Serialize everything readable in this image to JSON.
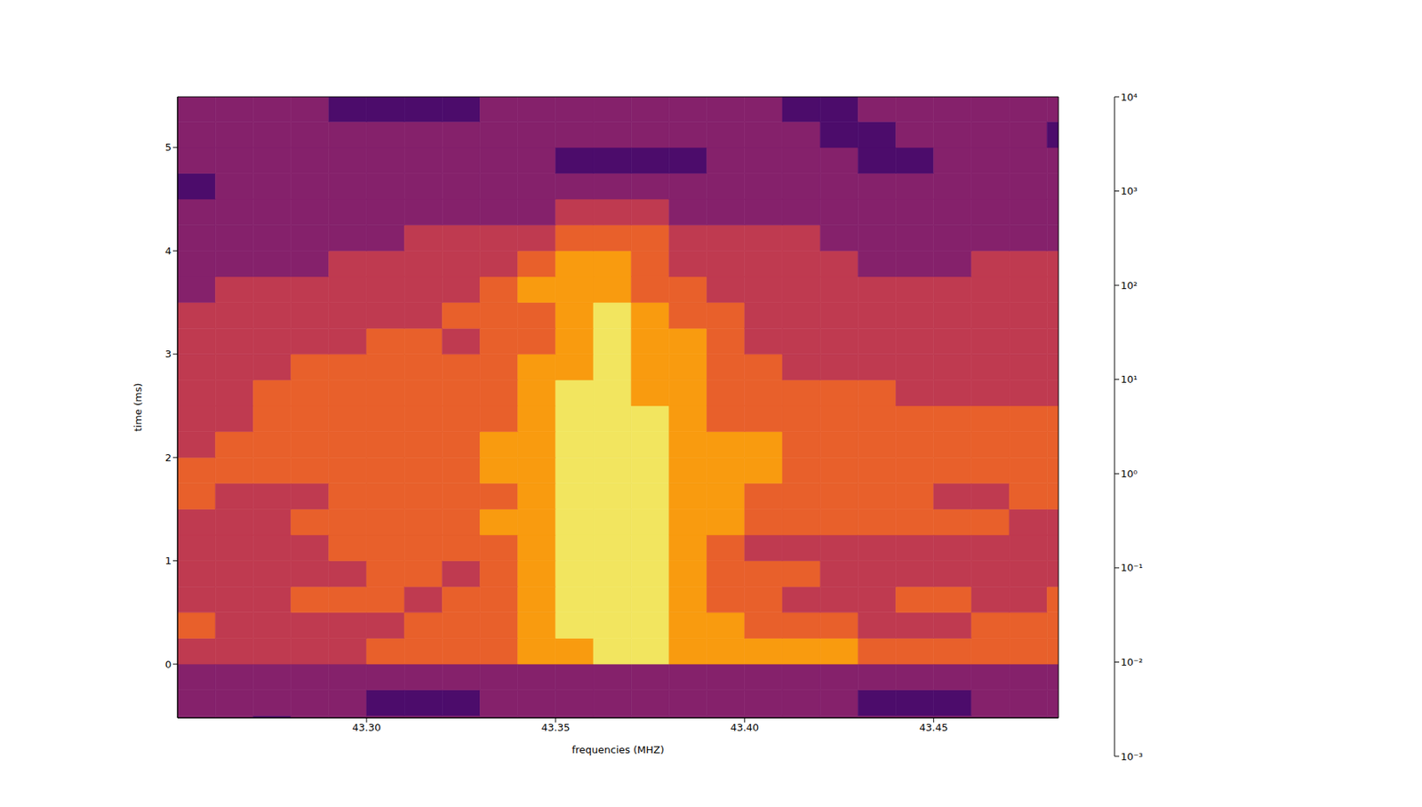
{
  "chart_data": {
    "type": "contourf",
    "x_label": "frequencies (MHZ)",
    "y_label": "time (ms)",
    "xlim": [
      43.25,
      43.483
    ],
    "ylim": [
      -0.52,
      5.49
    ],
    "xticks": [
      {
        "value": 43.3,
        "label": "43.30"
      },
      43.35,
      {
        "value": 43.4,
        "label": "43.40"
      },
      43.45
    ],
    "yticks": [
      0,
      1,
      2,
      3,
      4,
      5
    ],
    "x_edges": [
      43.25,
      43.26,
      43.27,
      43.28,
      43.29,
      43.3,
      43.31,
      43.32,
      43.33,
      43.34,
      43.35,
      43.36,
      43.37,
      43.38,
      43.39,
      43.4,
      43.41,
      43.42,
      43.43,
      43.44,
      43.45,
      43.46,
      43.47,
      43.48,
      43.49
    ],
    "y_edges": [
      -0.75,
      -0.5,
      -0.25,
      0,
      0.25,
      0.5,
      0.75,
      1,
      1.25,
      1.5,
      1.75,
      2,
      2.25,
      2.5,
      2.75,
      3,
      3.25,
      3.5,
      3.75,
      4,
      4.25,
      4.5,
      4.75,
      5,
      5.25,
      5.5
    ],
    "cells": [
      [
        0.5,
        0.5,
        0.05,
        0.5,
        0.5,
        0.5,
        0.5,
        0.5,
        0.5,
        0.5,
        0.5,
        0.5,
        0.5,
        0.5,
        0.5,
        0.5,
        0.5,
        0.5,
        0.5,
        0.5,
        0.5,
        0.5,
        0.5,
        0.5
      ],
      [
        0.5,
        0.5,
        0.5,
        0.5,
        0.5,
        0.05,
        0.05,
        0.05,
        0.5,
        0.5,
        0.5,
        0.5,
        0.5,
        0.5,
        0.5,
        0.5,
        0.5,
        0.5,
        0.05,
        0.05,
        0.05,
        0.5,
        0.5,
        0.5
      ],
      [
        0.5,
        0.5,
        0.5,
        0.5,
        0.5,
        0.5,
        0.5,
        0.5,
        0.5,
        0.5,
        0.5,
        0.5,
        0.5,
        0.5,
        0.5,
        0.5,
        0.5,
        0.5,
        0.5,
        0.5,
        0.5,
        0.5,
        0.5,
        0.5
      ],
      [
        5,
        5,
        5,
        5,
        5,
        50,
        50,
        50,
        50,
        500,
        500,
        5000,
        5000,
        500,
        500,
        500,
        500,
        500,
        50,
        50,
        50,
        50,
        50,
        50
      ],
      [
        50,
        5,
        5,
        5,
        5,
        5,
        50,
        50,
        50,
        500,
        5000,
        5000,
        5000,
        500,
        500,
        50,
        50,
        50,
        5,
        5,
        5,
        50,
        50,
        50
      ],
      [
        5,
        5,
        5,
        50,
        50,
        50,
        5,
        50,
        50,
        500,
        5000,
        5000,
        5000,
        500,
        50,
        50,
        5,
        5,
        5,
        50,
        50,
        5,
        5,
        50
      ],
      [
        5,
        5,
        5,
        5,
        5,
        50,
        50,
        5,
        50,
        500,
        5000,
        5000,
        5000,
        500,
        50,
        50,
        50,
        5,
        5,
        5,
        5,
        5,
        5,
        5
      ],
      [
        5,
        5,
        5,
        5,
        50,
        50,
        50,
        50,
        50,
        500,
        5000,
        5000,
        5000,
        500,
        50,
        5,
        5,
        5,
        5,
        5,
        5,
        5,
        5,
        5
      ],
      [
        5,
        5,
        5,
        50,
        50,
        50,
        50,
        50,
        500,
        500,
        5000,
        5000,
        5000,
        500,
        500,
        50,
        50,
        50,
        50,
        50,
        50,
        50,
        5,
        5
      ],
      [
        50,
        5,
        5,
        5,
        50,
        50,
        50,
        50,
        50,
        500,
        5000,
        5000,
        5000,
        500,
        500,
        50,
        50,
        50,
        50,
        50,
        5,
        5,
        50,
        50
      ],
      [
        50,
        50,
        50,
        50,
        50,
        50,
        50,
        50,
        500,
        500,
        5000,
        5000,
        5000,
        500,
        500,
        500,
        50,
        50,
        50,
        50,
        50,
        50,
        50,
        50
      ],
      [
        5,
        50,
        50,
        50,
        50,
        50,
        50,
        50,
        500,
        500,
        5000,
        5000,
        5000,
        500,
        500,
        500,
        50,
        50,
        50,
        50,
        50,
        50,
        50,
        50
      ],
      [
        5,
        5,
        50,
        50,
        50,
        50,
        50,
        50,
        50,
        500,
        5000,
        5000,
        5000,
        500,
        50,
        50,
        50,
        50,
        50,
        50,
        50,
        50,
        50,
        50
      ],
      [
        5,
        5,
        50,
        50,
        50,
        50,
        50,
        50,
        50,
        500,
        5000,
        5000,
        500,
        500,
        50,
        50,
        50,
        50,
        50,
        5,
        5,
        5,
        5,
        5
      ],
      [
        5,
        5,
        5,
        50,
        50,
        50,
        50,
        50,
        50,
        500,
        500,
        5000,
        500,
        500,
        50,
        50,
        5,
        5,
        5,
        5,
        5,
        5,
        5,
        5
      ],
      [
        5,
        5,
        5,
        5,
        5,
        50,
        50,
        5,
        50,
        50,
        500,
        5000,
        500,
        500,
        50,
        5,
        5,
        5,
        5,
        5,
        5,
        5,
        5,
        5
      ],
      [
        5,
        5,
        5,
        5,
        5,
        5,
        5,
        50,
        50,
        50,
        500,
        5000,
        500,
        50,
        50,
        5,
        5,
        5,
        5,
        5,
        5,
        5,
        5,
        5
      ],
      [
        0.5,
        5,
        5,
        5,
        5,
        5,
        5,
        5,
        50,
        500,
        500,
        500,
        50,
        50,
        5,
        5,
        5,
        5,
        5,
        5,
        5,
        5,
        5,
        5
      ],
      [
        0.5,
        0.5,
        0.5,
        0.5,
        5,
        5,
        5,
        5,
        5,
        50,
        500,
        500,
        50,
        5,
        5,
        5,
        5,
        5,
        0.5,
        0.5,
        0.5,
        5,
        5,
        5
      ],
      [
        0.5,
        0.5,
        0.5,
        0.5,
        0.5,
        0.5,
        5,
        5,
        5,
        5,
        50,
        50,
        50,
        5,
        5,
        5,
        5,
        0.5,
        0.5,
        0.5,
        0.5,
        0.5,
        0.5,
        0.5
      ],
      [
        0.5,
        0.5,
        0.5,
        0.5,
        0.5,
        0.5,
        0.5,
        0.5,
        0.5,
        0.5,
        5,
        5,
        5,
        0.5,
        0.5,
        0.5,
        0.5,
        0.5,
        0.5,
        0.5,
        0.5,
        0.5,
        0.5,
        0.5
      ],
      [
        0.05,
        0.5,
        0.5,
        0.5,
        0.5,
        0.5,
        0.5,
        0.5,
        0.5,
        0.5,
        0.5,
        0.5,
        0.5,
        0.5,
        0.5,
        0.5,
        0.5,
        0.5,
        0.5,
        0.5,
        0.5,
        0.5,
        0.5,
        0.5
      ],
      [
        0.5,
        0.5,
        0.5,
        0.5,
        0.5,
        0.5,
        0.5,
        0.5,
        0.5,
        0.5,
        0.05,
        0.05,
        0.05,
        0.05,
        0.5,
        0.5,
        0.5,
        0.5,
        0.05,
        0.05,
        0.5,
        0.5,
        0.5,
        0.5
      ],
      [
        0.5,
        0.5,
        0.5,
        0.5,
        0.5,
        0.5,
        0.5,
        0.5,
        0.5,
        0.5,
        0.5,
        0.5,
        0.5,
        0.5,
        0.5,
        0.5,
        0.5,
        0.05,
        0.05,
        0.5,
        0.5,
        0.5,
        0.5,
        0.05
      ],
      [
        0.5,
        0.5,
        0.5,
        0.5,
        0.05,
        0.05,
        0.05,
        0.05,
        0.5,
        0.5,
        0.5,
        0.5,
        0.5,
        0.5,
        0.5,
        0.5,
        0.05,
        0.05,
        0.5,
        0.5,
        0.5,
        0.5,
        0.5,
        0.5
      ]
    ],
    "colorbar": {
      "range": [
        0.001,
        10000
      ],
      "log": true,
      "ticks": [
        {
          "value": 0.001,
          "label": "10⁻³"
        },
        {
          "value": 0.01,
          "label": "10⁻²"
        },
        {
          "value": 0.1,
          "label": "10⁻¹"
        },
        {
          "value": 1,
          "label": "10⁰"
        },
        {
          "value": 10,
          "label": "10¹"
        },
        {
          "value": 100,
          "label": "10²"
        },
        {
          "value": 1000,
          "label": "10³"
        },
        {
          "value": 10000,
          "label": "10⁴"
        }
      ],
      "colors": [
        "#0c0826",
        "#4c0c6b",
        "#85216b",
        "#bf3a50",
        "#e8602b",
        "#f99b0f",
        "#f2e55f"
      ]
    }
  }
}
